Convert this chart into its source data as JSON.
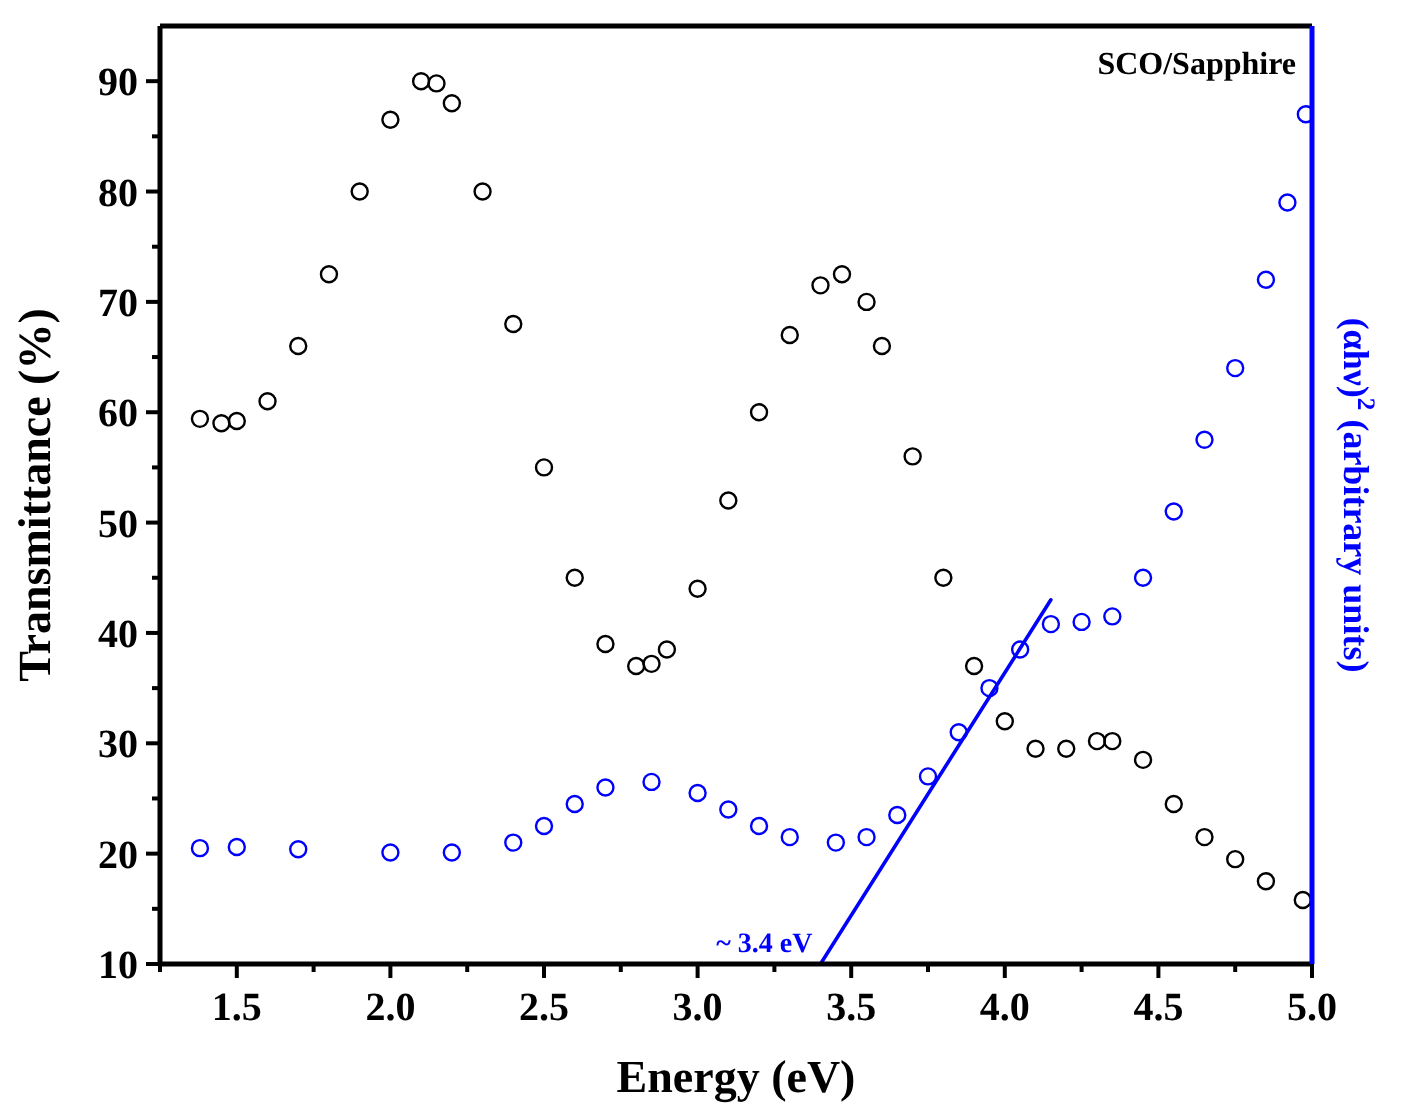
{
  "chart_data": {
    "type": "scatter",
    "xlabel": "Energy (eV)",
    "ylabel": "Transmittance (%)",
    "y2label": "(αhν)$^{2}$ (arbitrary units)",
    "marker": "circle",
    "xlim": [
      1.25,
      5.0
    ],
    "ylim": [
      10,
      95
    ],
    "xticks": [
      {
        "value": 1.25,
        "label": null
      },
      1.5,
      {
        "value": 1.75,
        "label": null
      },
      {
        "value": 2,
        "label": "2.0"
      },
      {
        "value": 2.25,
        "label": null
      },
      2.5,
      {
        "value": 2.75,
        "label": null
      },
      {
        "value": 3,
        "label": "3.0"
      },
      {
        "value": 3.25,
        "label": null
      },
      3.5,
      {
        "value": 3.75,
        "label": null
      },
      {
        "value": 4,
        "label": "4.0"
      },
      {
        "value": 4.25,
        "label": null
      },
      4.5,
      {
        "value": 4.75,
        "label": null
      },
      {
        "value": 5,
        "label": "5.0"
      }
    ],
    "yticks": [
      10,
      {
        "value": 15,
        "label": null
      },
      20,
      {
        "value": 25,
        "label": null
      },
      30,
      {
        "value": 35,
        "label": null
      },
      40,
      {
        "value": 45,
        "label": null
      },
      50,
      {
        "value": 55,
        "label": null
      },
      60,
      {
        "value": 65,
        "label": null
      },
      70,
      {
        "value": 75,
        "label": null
      },
      80,
      {
        "value": 85,
        "label": null
      },
      90
    ],
    "series": [
      {
        "color": "#000000",
        "x": [
          1.38,
          1.45,
          1.5,
          1.6,
          1.7,
          1.8,
          1.9,
          2.0,
          2.1,
          2.15,
          2.2,
          2.3,
          2.4,
          2.5,
          2.6,
          2.7,
          2.8,
          2.85,
          2.9,
          3.0,
          3.1,
          3.2,
          3.3,
          3.4,
          3.47,
          3.55,
          3.6,
          3.7,
          3.8,
          3.9,
          4.0,
          4.1,
          4.2,
          4.3,
          4.35,
          4.45,
          4.55,
          4.65,
          4.75,
          4.85,
          4.97
        ],
        "values": [
          59.4,
          59,
          59.2,
          61,
          66,
          72.5,
          80,
          86.5,
          90,
          89.8,
          88,
          80,
          68,
          55,
          45,
          39,
          37,
          37.2,
          38.5,
          44,
          52,
          60,
          67,
          71.5,
          72.5,
          70,
          66,
          56,
          45,
          37,
          32,
          29.5,
          29.5,
          30.2,
          30.2,
          28.5,
          24.5,
          21.5,
          19.5,
          17.5,
          15.8
        ]
      },
      {
        "color": "#0000ff",
        "x": [
          1.38,
          1.5,
          1.7,
          2.0,
          2.2,
          2.4,
          2.5,
          2.6,
          2.7,
          2.85,
          3.0,
          3.1,
          3.2,
          3.3,
          3.45,
          3.55,
          3.65,
          3.75,
          3.85,
          3.95,
          4.05,
          4.15,
          4.25,
          4.35,
          4.45,
          4.55,
          4.65,
          4.75,
          4.85,
          4.92,
          4.98
        ],
        "values": [
          20.5,
          20.6,
          20.4,
          20.1,
          20.1,
          21,
          22.5,
          24.5,
          26,
          26.5,
          25.5,
          24,
          22.5,
          21.5,
          21,
          21.5,
          23.5,
          27,
          31,
          35,
          38.5,
          40.8,
          41,
          41.5,
          45,
          51,
          57.5,
          64,
          72,
          79,
          87
        ]
      },
      {
        "type": "line",
        "color": "#0000ff",
        "marker": "none",
        "x": [
          3.4,
          4.15
        ],
        "values": [
          10,
          43
        ]
      }
    ],
    "annotations": [
      "SCO/Sapphire",
      {
        "text": "~ 3.4 eV",
        "x": 3.4,
        "y": 10
      }
    ]
  }
}
